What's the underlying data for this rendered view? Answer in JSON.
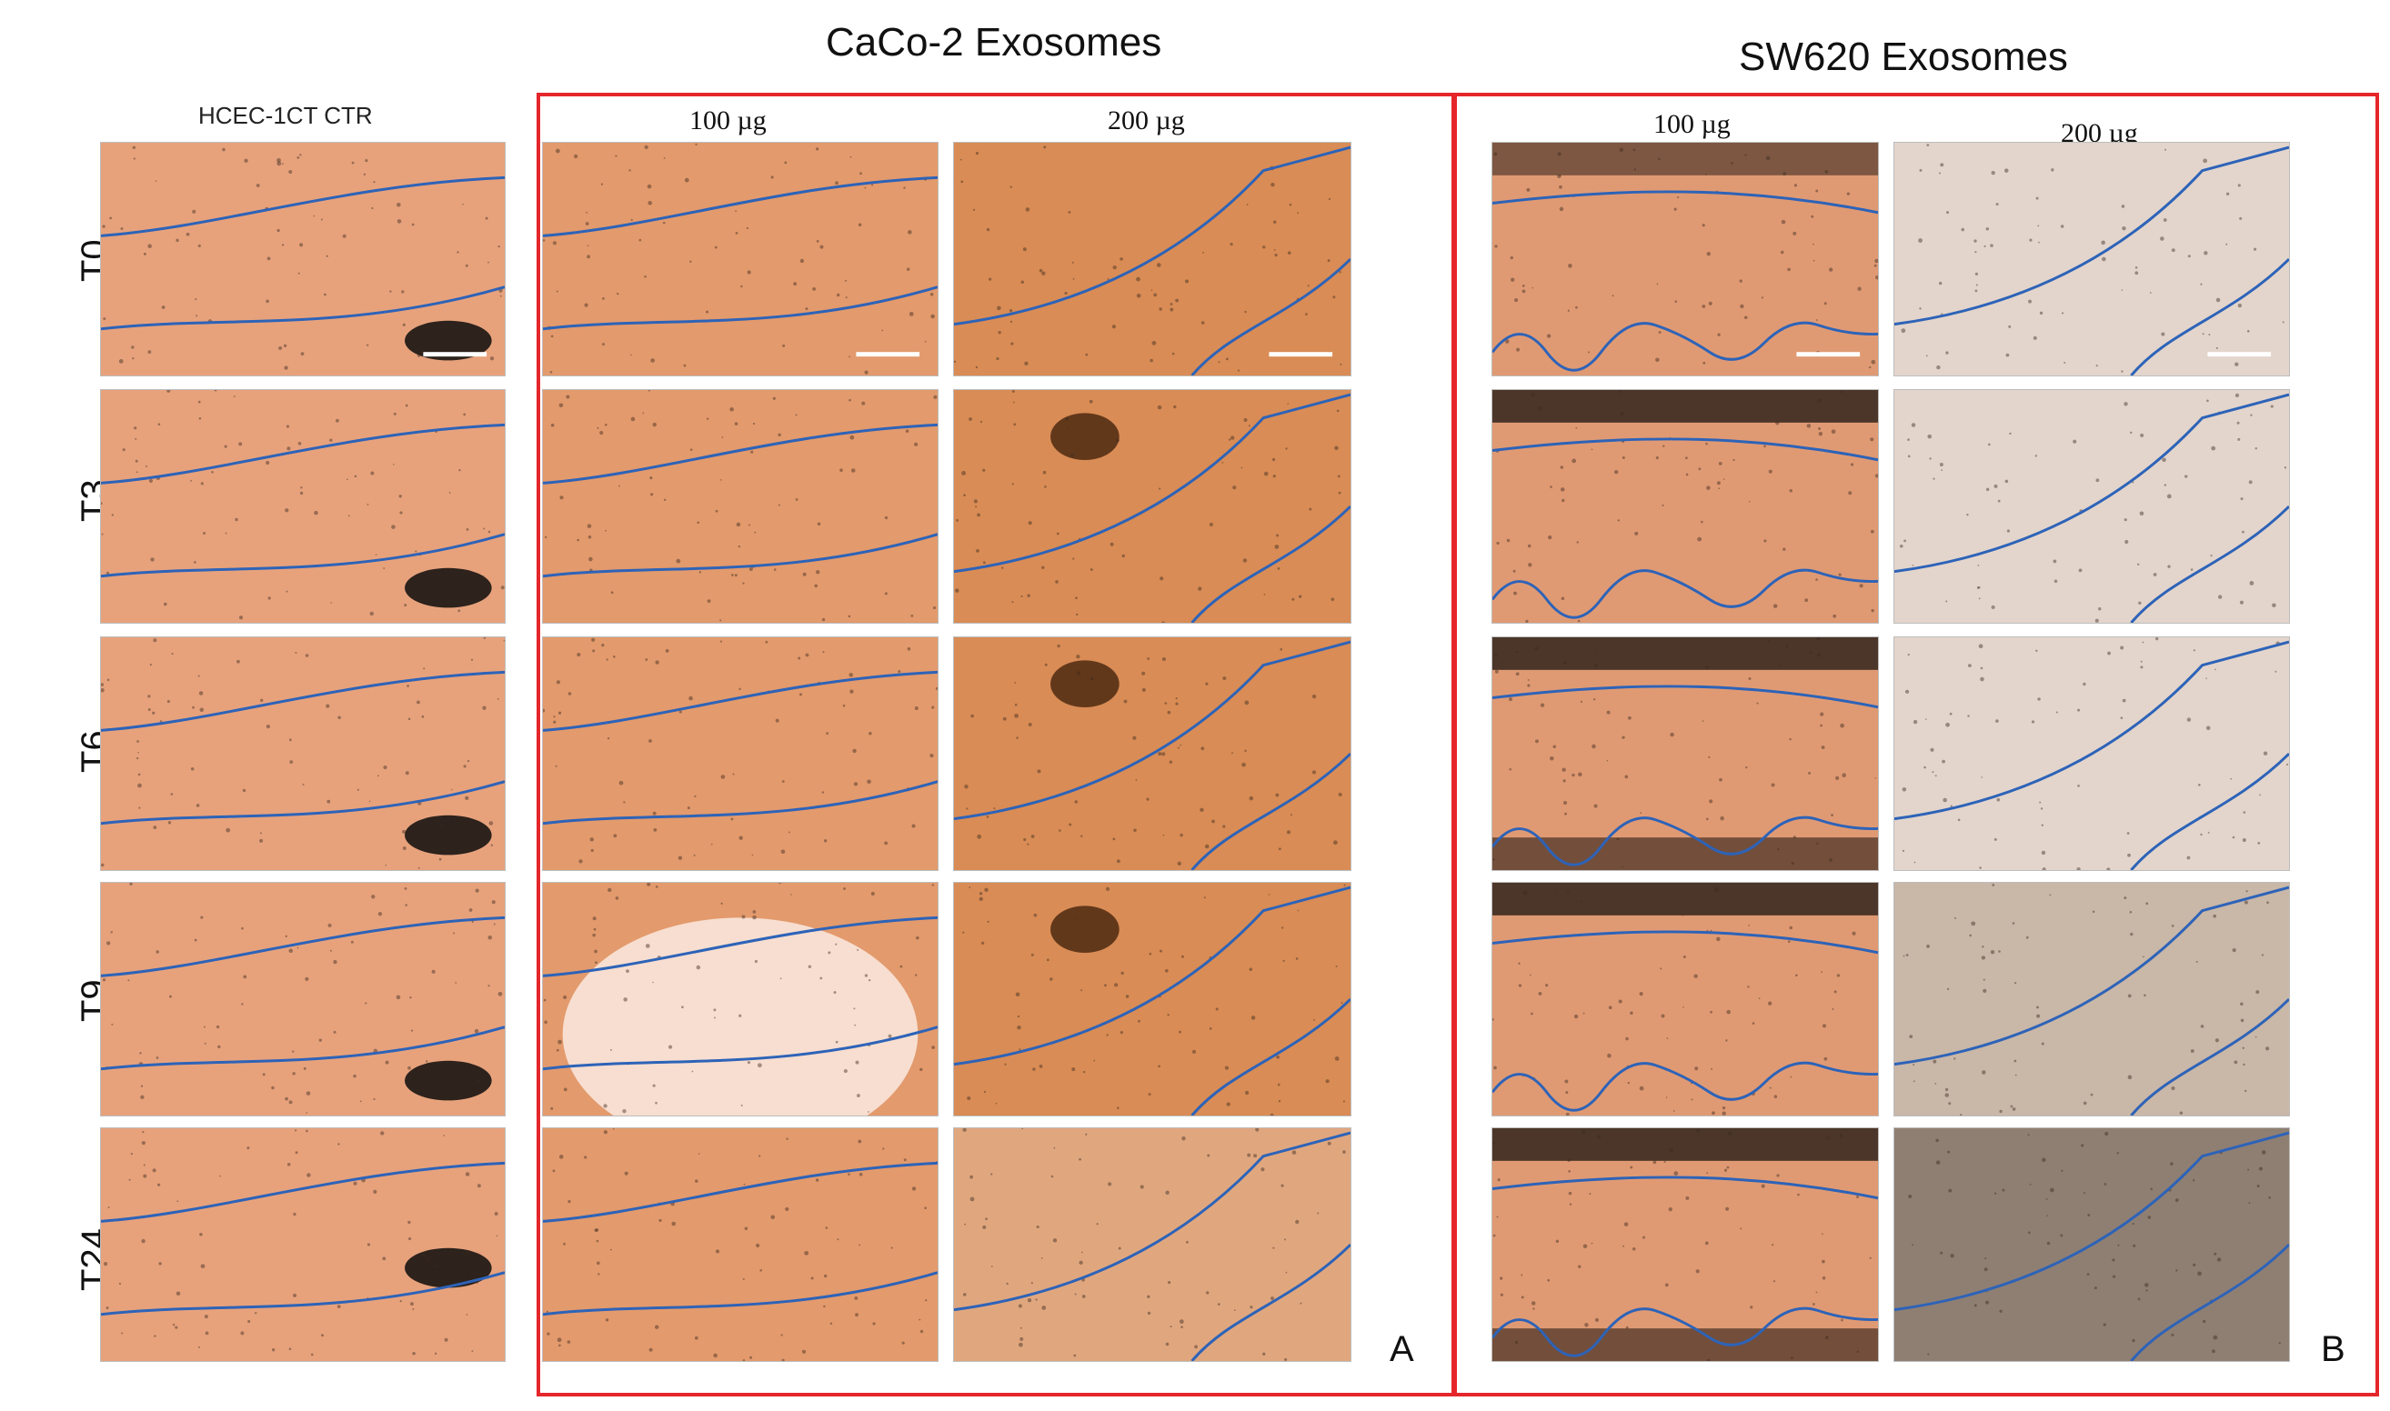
{
  "figure": {
    "group_titles": {
      "caco2": "CaCo-2 Exosomes",
      "sw620": "SW620 Exosomes"
    },
    "control_label": "HCEC-1CT CTR",
    "dose_labels": [
      "100 µg",
      "200 µg"
    ],
    "timepoints": [
      "T0",
      "T3",
      "T6",
      "T9",
      "T24"
    ],
    "panel_letters": [
      "A",
      "B"
    ]
  },
  "colors": {
    "box_border": "#e5262b",
    "wound_line": "#2d63b8",
    "ctr_tissue": "#e7a27c",
    "caco2_tissue": "#e39a6c",
    "sw620_light": "#e3d5cc",
    "scale_bar": "#ffffff"
  }
}
